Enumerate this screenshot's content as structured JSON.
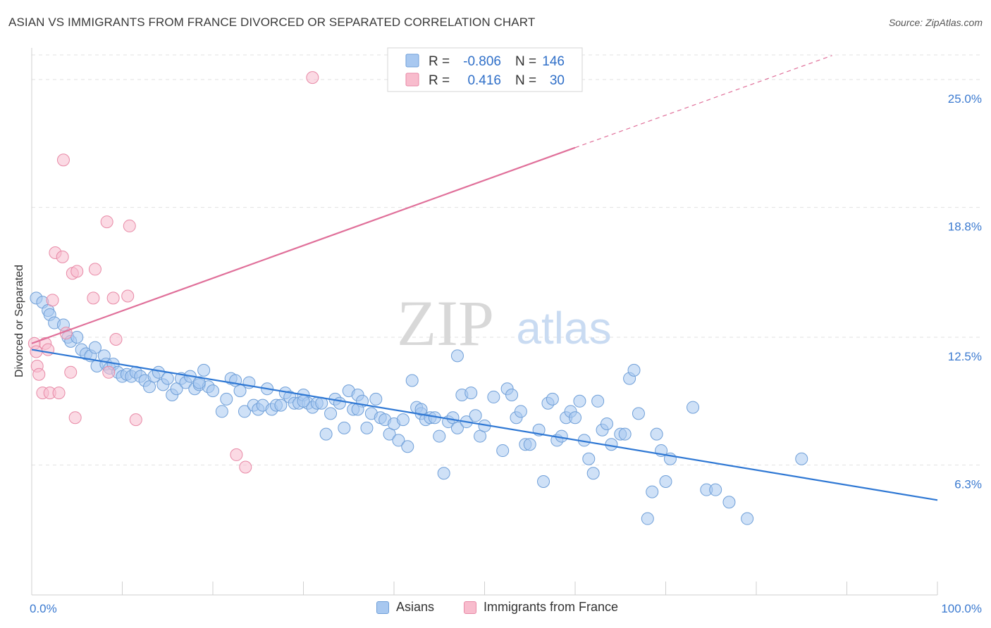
{
  "title": "ASIAN VS IMMIGRANTS FROM FRANCE DIVORCED OR SEPARATED CORRELATION CHART",
  "source": "Source: ZipAtlas.com",
  "watermark": {
    "zip": "ZIP",
    "atlas": "atlas"
  },
  "chart_data": {
    "type": "scatter",
    "xlabel": "",
    "ylabel": "Divorced or Separated",
    "xlim": [
      0,
      100
    ],
    "ylim": [
      0,
      26.3
    ],
    "x_tick_labels": {
      "left": "0.0%",
      "right": "100.0%"
    },
    "y_ticks": [
      {
        "value": 6.3,
        "label": "6.3%"
      },
      {
        "value": 12.5,
        "label": "12.5%"
      },
      {
        "value": 18.8,
        "label": "18.8%"
      },
      {
        "value": 25.0,
        "label": "25.0%"
      }
    ],
    "grid": true,
    "legend_placement": "top-center",
    "stats": [
      {
        "r_label": "R = ",
        "r_value": "-0.806",
        "n_label": "N = ",
        "n_value": "146",
        "color": "#a8c8f0",
        "stroke": "#6f9fd8"
      },
      {
        "r_label": "R = ",
        "r_value": "0.416",
        "n_label": "N = ",
        "n_value": "30",
        "color": "#f8bccd",
        "stroke": "#e889a6"
      }
    ],
    "series": [
      {
        "name": "Asians",
        "color": "#a8c8f0",
        "stroke": "#6f9fd8",
        "trend": {
          "x0": 0,
          "y0": 11.9,
          "x1": 100,
          "y1": 4.6,
          "color": "#2f78d4"
        },
        "points": [
          [
            0.5,
            14.4
          ],
          [
            1.2,
            14.2
          ],
          [
            1.8,
            13.8
          ],
          [
            2,
            13.6
          ],
          [
            2.5,
            13.2
          ],
          [
            3.5,
            13.1
          ],
          [
            4,
            12.5
          ],
          [
            4.3,
            12.3
          ],
          [
            5,
            12.5
          ],
          [
            5.5,
            11.9
          ],
          [
            6,
            11.7
          ],
          [
            6.5,
            11.6
          ],
          [
            7,
            12.0
          ],
          [
            7.2,
            11.1
          ],
          [
            8,
            11.6
          ],
          [
            8.2,
            11.2
          ],
          [
            8.6,
            11.0
          ],
          [
            9,
            11.2
          ],
          [
            9.5,
            10.8
          ],
          [
            10,
            10.6
          ],
          [
            10.5,
            10.7
          ],
          [
            11,
            10.6
          ],
          [
            11.5,
            10.8
          ],
          [
            12,
            10.6
          ],
          [
            12.5,
            10.4
          ],
          [
            13,
            10.1
          ],
          [
            13.5,
            10.6
          ],
          [
            14,
            10.8
          ],
          [
            14.5,
            10.2
          ],
          [
            15,
            10.5
          ],
          [
            15.5,
            9.7
          ],
          [
            16,
            10.0
          ],
          [
            16.5,
            10.5
          ],
          [
            17,
            10.3
          ],
          [
            17.5,
            10.6
          ],
          [
            18,
            10.0
          ],
          [
            18.5,
            10.2
          ],
          [
            19,
            10.9
          ],
          [
            19.5,
            10.1
          ],
          [
            20,
            9.9
          ],
          [
            21,
            8.9
          ],
          [
            21.5,
            9.5
          ],
          [
            22,
            10.5
          ],
          [
            22.5,
            10.4
          ],
          [
            23,
            9.9
          ],
          [
            23.5,
            8.9
          ],
          [
            24,
            10.3
          ],
          [
            24.5,
            9.2
          ],
          [
            25,
            9.0
          ],
          [
            25.5,
            9.2
          ],
          [
            26,
            10.0
          ],
          [
            26.5,
            9.0
          ],
          [
            27,
            9.2
          ],
          [
            27.5,
            9.2
          ],
          [
            28,
            9.8
          ],
          [
            28.5,
            9.6
          ],
          [
            29,
            9.3
          ],
          [
            29.5,
            9.3
          ],
          [
            30,
            9.7
          ],
          [
            30.5,
            9.3
          ],
          [
            31,
            9.1
          ],
          [
            31.5,
            9.3
          ],
          [
            32,
            9.3
          ],
          [
            32.5,
            7.8
          ],
          [
            33,
            8.8
          ],
          [
            33.5,
            9.5
          ],
          [
            34,
            9.3
          ],
          [
            34.5,
            8.1
          ],
          [
            35,
            9.9
          ],
          [
            35.5,
            9.0
          ],
          [
            36,
            9.7
          ],
          [
            36.5,
            9.4
          ],
          [
            37,
            8.1
          ],
          [
            37.5,
            8.8
          ],
          [
            38,
            9.5
          ],
          [
            38.5,
            8.6
          ],
          [
            39,
            8.5
          ],
          [
            39.5,
            7.8
          ],
          [
            40,
            8.3
          ],
          [
            40.5,
            7.5
          ],
          [
            41,
            8.5
          ],
          [
            41.5,
            7.2
          ],
          [
            42,
            10.4
          ],
          [
            42.5,
            9.1
          ],
          [
            43,
            8.8
          ],
          [
            43.5,
            8.5
          ],
          [
            44,
            8.6
          ],
          [
            44.5,
            8.6
          ],
          [
            45,
            7.7
          ],
          [
            45.5,
            5.9
          ],
          [
            46,
            8.4
          ],
          [
            46.5,
            8.6
          ],
          [
            47,
            8.1
          ],
          [
            47.5,
            9.7
          ],
          [
            48,
            8.4
          ],
          [
            48.5,
            9.8
          ],
          [
            49,
            8.7
          ],
          [
            49.5,
            7.7
          ],
          [
            50,
            8.2
          ],
          [
            51,
            9.6
          ],
          [
            52,
            7.0
          ],
          [
            52.5,
            10.0
          ],
          [
            53,
            9.7
          ],
          [
            53.5,
            8.6
          ],
          [
            54,
            8.9
          ],
          [
            54.5,
            7.3
          ],
          [
            55,
            7.3
          ],
          [
            56,
            8.0
          ],
          [
            56.5,
            5.5
          ],
          [
            57,
            9.3
          ],
          [
            57.5,
            9.5
          ],
          [
            58,
            7.5
          ],
          [
            58.5,
            7.7
          ],
          [
            59,
            8.6
          ],
          [
            59.5,
            8.9
          ],
          [
            60,
            8.6
          ],
          [
            60.5,
            9.4
          ],
          [
            61,
            7.5
          ],
          [
            61.5,
            6.6
          ],
          [
            62,
            5.9
          ],
          [
            62.5,
            9.4
          ],
          [
            63,
            8.0
          ],
          [
            63.5,
            8.3
          ],
          [
            64,
            7.3
          ],
          [
            65,
            7.8
          ],
          [
            65.5,
            7.8
          ],
          [
            66,
            10.5
          ],
          [
            66.5,
            10.9
          ],
          [
            67,
            8.8
          ],
          [
            68,
            3.7
          ],
          [
            68.5,
            5.0
          ],
          [
            69,
            7.8
          ],
          [
            69.5,
            7.0
          ],
          [
            70,
            5.5
          ],
          [
            70.5,
            6.6
          ],
          [
            73,
            9.1
          ],
          [
            74.5,
            5.1
          ],
          [
            75.5,
            5.1
          ],
          [
            77,
            4.5
          ],
          [
            79,
            3.7
          ],
          [
            85,
            6.6
          ],
          [
            47,
            11.6
          ],
          [
            36,
            9.0
          ],
          [
            18.5,
            10.3
          ],
          [
            30,
            9.4
          ],
          [
            43,
            9.0
          ]
        ]
      },
      {
        "name": "Immigrants from France",
        "color": "#f8bccd",
        "stroke": "#e889a6",
        "trend": {
          "x0": 0,
          "y0": 12.2,
          "x1": 60,
          "y1": 21.7,
          "x2": 100,
          "y2": 28.0,
          "color": "#e0709a"
        },
        "points": [
          [
            0.3,
            12.2
          ],
          [
            0.5,
            11.8
          ],
          [
            0.6,
            11.1
          ],
          [
            0.8,
            10.7
          ],
          [
            1.2,
            9.8
          ],
          [
            1.5,
            12.2
          ],
          [
            1.8,
            11.9
          ],
          [
            2,
            9.8
          ],
          [
            2.3,
            14.3
          ],
          [
            2.6,
            16.6
          ],
          [
            3,
            9.8
          ],
          [
            3.4,
            16.4
          ],
          [
            3.5,
            21.1
          ],
          [
            3.8,
            12.7
          ],
          [
            4.3,
            10.8
          ],
          [
            4.5,
            15.6
          ],
          [
            4.8,
            8.6
          ],
          [
            5,
            15.7
          ],
          [
            6.8,
            14.4
          ],
          [
            7,
            15.8
          ],
          [
            8.3,
            18.1
          ],
          [
            8.5,
            10.8
          ],
          [
            9,
            14.4
          ],
          [
            9.3,
            12.4
          ],
          [
            10.6,
            14.5
          ],
          [
            10.8,
            17.9
          ],
          [
            11.5,
            8.5
          ],
          [
            22.6,
            6.8
          ],
          [
            23.6,
            6.2
          ],
          [
            31,
            25.1
          ]
        ]
      }
    ]
  }
}
